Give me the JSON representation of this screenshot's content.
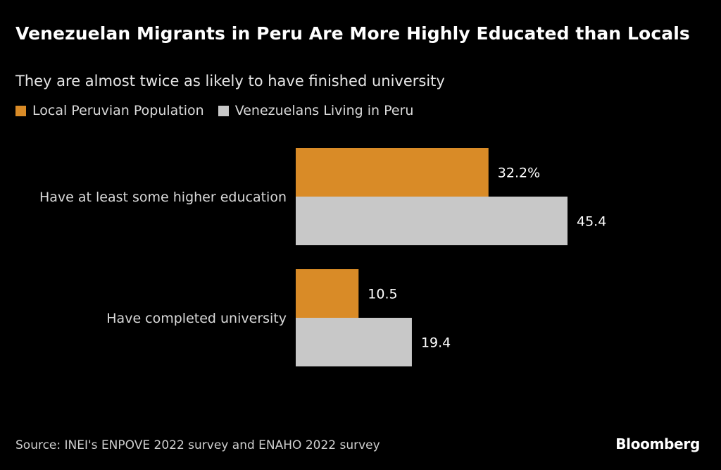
{
  "title": "Venezuelan Migrants in Peru Are More Highly Educated than Locals",
  "subtitle": "They are almost twice as likely to have finished university",
  "source": "Source: INEI's ENPOVE 2022 survey and ENAHO 2022 survey",
  "brand": "Bloomberg",
  "chart_data": {
    "type": "bar",
    "orientation": "horizontal",
    "categories": [
      "Have at least some higher education",
      "Have completed university"
    ],
    "series": [
      {
        "name": "Local Peruvian Population",
        "values": [
          32.2,
          10.5
        ],
        "labels": [
          "32.2%",
          "10.5"
        ],
        "color": "#d98b27"
      },
      {
        "name": "Venezuelans Living in Peru",
        "values": [
          45.4,
          19.4
        ],
        "labels": [
          "45.4",
          "19.4"
        ],
        "color": "#c8c8c8"
      }
    ],
    "title": "Venezuelan Migrants in Peru Are More Highly Educated than Locals",
    "xlim": [
      0,
      45.4
    ],
    "legend": "top-left",
    "grid": false
  }
}
